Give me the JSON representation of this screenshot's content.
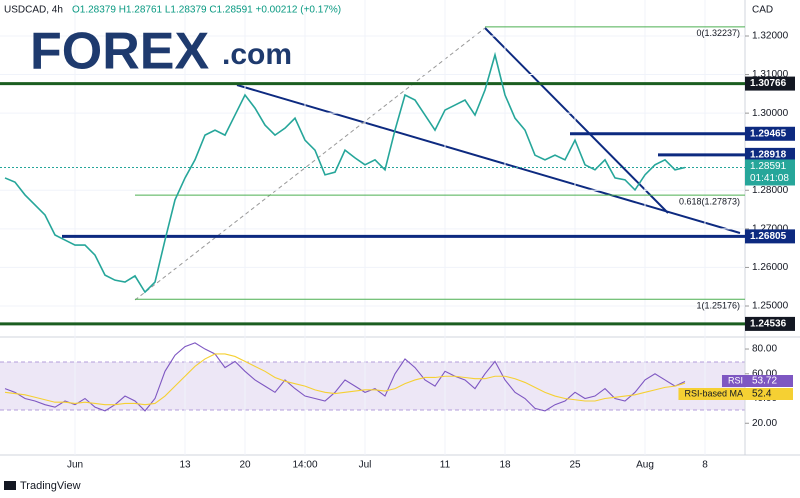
{
  "header": {
    "symbol": "USDCAD, 4h",
    "ohlc": "O1.28379 H1.28761 L1.28379 C1.28591 +0.00212 (+0.17%)",
    "currency": "CAD"
  },
  "logo": {
    "text": "FOREX",
    "suffix": ".com"
  },
  "footer": {
    "brand": "TradingView"
  },
  "chart_data": [
    {
      "type": "line",
      "categories": [
        null,
        null,
        null,
        null,
        null,
        null,
        null,
        "Jun",
        null,
        null,
        null,
        null,
        null,
        null,
        null,
        null,
        null,
        null,
        "13",
        null,
        null,
        null,
        null,
        null,
        "20",
        null,
        null,
        null,
        null,
        null,
        "14:00",
        null,
        null,
        null,
        null,
        null,
        "Jul",
        null,
        null,
        null,
        null,
        null,
        null,
        null,
        "11",
        null,
        null,
        null,
        null,
        null,
        "18",
        null,
        null,
        null,
        null,
        null,
        null,
        "25",
        null,
        null,
        null,
        null,
        null,
        null,
        "Aug",
        null,
        null,
        null,
        null,
        null,
        "8"
      ],
      "series": [
        {
          "name": "USDCAD",
          "color": "#26a69a",
          "values": [
            1.2832,
            1.2821,
            1.2788,
            1.2762,
            1.2736,
            1.2684,
            1.2671,
            1.2658,
            1.2658,
            1.2632,
            1.258,
            1.2567,
            1.2562,
            1.2578,
            1.2536,
            1.2562,
            1.2671,
            1.2775,
            1.2832,
            1.2879,
            1.2943,
            1.2956,
            1.2943,
            1.2995,
            1.3047,
            1.3013,
            1.2969,
            1.2943,
            1.2961,
            1.2987,
            1.293,
            1.2904,
            1.284,
            1.2847,
            1.2904,
            1.2884,
            1.2866,
            1.2879,
            1.2853,
            1.2956,
            1.3047,
            1.3034,
            1.2995,
            1.2956,
            1.3008,
            1.3021,
            1.3034,
            1.2995,
            1.306,
            1.3151,
            1.3047,
            1.2987,
            1.2956,
            1.2891,
            1.2879,
            1.2891,
            1.2879,
            1.293,
            1.2866,
            1.2853,
            1.2879,
            1.2832,
            1.2827,
            1.2801,
            1.284,
            1.2866,
            1.2879,
            1.2853,
            1.2859,
            null,
            null
          ]
        }
      ],
      "ylim": [
        1.243,
        1.32933
      ],
      "yticks": [
        {
          "value": 1.32,
          "label": "1.32000"
        },
        {
          "value": 1.31,
          "label": "1.31000"
        },
        {
          "value": 1.3,
          "label": "1.30000"
        },
        {
          "value": 1.28,
          "label": "1.28000"
        },
        {
          "value": 1.27,
          "label": "1.27000"
        },
        {
          "value": 1.26,
          "label": "1.26000"
        },
        {
          "value": 1.25,
          "label": "1.25000"
        }
      ],
      "grid": true,
      "levels": [
        {
          "value": 1.30766,
          "color": "#1b5e20"
        },
        {
          "value": 1.29465,
          "color": "#0d2a80"
        },
        {
          "value": 1.28918,
          "color": "#0d2a80"
        },
        {
          "value": 1.26805,
          "color": "#0d2a80"
        },
        {
          "value": 1.24536,
          "color": "#1b5e20"
        }
      ],
      "fibs": [
        {
          "value": 1.32237,
          "label": "0(1.32237)"
        },
        {
          "value": 1.27873,
          "label": "0.618(1.27873)"
        },
        {
          "value": 1.25176,
          "label": "1(1.25176)"
        }
      ],
      "last_price": {
        "value": 1.28591,
        "countdown": "01:41:08",
        "color": "#26a69a"
      }
    },
    {
      "type": "line",
      "series": [
        {
          "name": "RSI",
          "color": "#7e57c2",
          "values": [
            48,
            45,
            40,
            38,
            35,
            33,
            38,
            35,
            40,
            33,
            30,
            35,
            42,
            38,
            30,
            40,
            62,
            75,
            82,
            85,
            80,
            76,
            65,
            70,
            62,
            55,
            50,
            45,
            55,
            48,
            42,
            40,
            38,
            45,
            55,
            50,
            45,
            48,
            42,
            60,
            72,
            65,
            55,
            50,
            62,
            58,
            55,
            48,
            60,
            70,
            55,
            45,
            40,
            32,
            30,
            35,
            38,
            45,
            40,
            42,
            48,
            40,
            38,
            45,
            55,
            60,
            55,
            50,
            53.72,
            null,
            null
          ]
        },
        {
          "name": "RSI-based MA",
          "color": "#f5d033",
          "values": [
            45,
            44,
            43,
            41,
            39,
            37,
            37,
            36,
            37,
            36,
            35,
            35,
            36,
            36,
            35,
            36,
            42,
            50,
            58,
            66,
            72,
            76,
            76,
            74,
            70,
            66,
            62,
            57,
            54,
            52,
            50,
            47,
            45,
            44,
            45,
            46,
            47,
            47,
            46,
            48,
            52,
            55,
            57,
            57,
            58,
            58,
            57,
            56,
            56,
            58,
            58,
            56,
            53,
            49,
            45,
            42,
            40,
            39,
            38,
            38,
            40,
            41,
            42,
            43,
            45,
            47,
            49,
            50,
            52.4,
            null,
            null
          ]
        }
      ],
      "ylim": [
        0,
        87.3
      ],
      "yticks": [
        {
          "value": 80,
          "label": "80.00"
        },
        {
          "value": 60,
          "label": "60.00"
        },
        {
          "value": 40,
          "label": "40.00"
        },
        {
          "value": 20,
          "label": "20.00"
        }
      ]
    }
  ]
}
